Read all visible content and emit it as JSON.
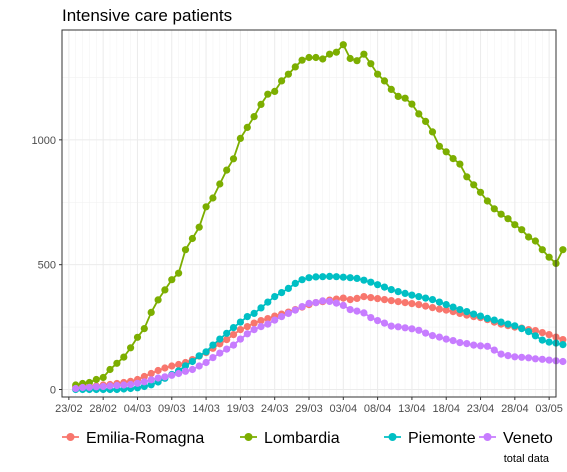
{
  "chart_data": {
    "type": "line",
    "title": "Intensive care patients",
    "caption": "total data",
    "xlabel": "",
    "ylabel": "",
    "x_start": "2020-02-24",
    "x_tick_labels": [
      "23/02",
      "28/02",
      "04/03",
      "09/03",
      "14/03",
      "19/03",
      "24/03",
      "29/03",
      "03/04",
      "08/04",
      "13/04",
      "18/04",
      "23/04",
      "28/04",
      "03/05"
    ],
    "y_ticks": [
      0,
      500,
      1000
    ],
    "xlim": [
      "2020-02-22",
      "2020-05-04"
    ],
    "ylim": [
      -30,
      1440
    ],
    "grid": true,
    "legend_position": "bottom",
    "series": [
      {
        "name": "Emilia-Romagna",
        "color": "#F8766D",
        "values": [
          10,
          12,
          13,
          14,
          18,
          20,
          24,
          28,
          33,
          40,
          52,
          64,
          76,
          86,
          94,
          100,
          108,
          120,
          134,
          148,
          165,
          183,
          200,
          220,
          240,
          252,
          266,
          276,
          284,
          294,
          302,
          310,
          320,
          330,
          340,
          348,
          352,
          358,
          362,
          366,
          360,
          365,
          372,
          368,
          364,
          360,
          356,
          352,
          348,
          344,
          340,
          334,
          328,
          322,
          318,
          312,
          305,
          298,
          292,
          288,
          280,
          270,
          262,
          256,
          250,
          246,
          240,
          236,
          228,
          220,
          210,
          200
        ]
      },
      {
        "name": "Lombardia",
        "color": "#7CAE00",
        "values": [
          18,
          24,
          28,
          40,
          48,
          80,
          105,
          130,
          167,
          209,
          244,
          309,
          359,
          399,
          440,
          466,
          560,
          605,
          650,
          732,
          767,
          823,
          879,
          924,
          1006,
          1050,
          1093,
          1142,
          1183,
          1194,
          1236,
          1263,
          1292,
          1319,
          1330,
          1330,
          1324,
          1343,
          1351,
          1381,
          1326,
          1317,
          1343,
          1305,
          1263,
          1236,
          1202,
          1174,
          1167,
          1143,
          1104,
          1074,
          1032,
          974,
          952,
          925,
          903,
          852,
          820,
          790,
          755,
          724,
          702,
          684,
          660,
          640,
          611,
          595,
          560,
          530,
          505,
          560
        ]
      },
      {
        "name": "Piemonte",
        "color": "#00BFC4",
        "values": [
          0,
          0,
          0,
          0,
          0,
          0,
          0,
          2,
          4,
          7,
          12,
          19,
          30,
          45,
          60,
          75,
          95,
          112,
          135,
          151,
          178,
          202,
          225,
          248,
          270,
          292,
          305,
          327,
          350,
          372,
          388,
          405,
          425,
          440,
          448,
          451,
          452,
          453,
          452,
          450,
          448,
          445,
          438,
          430,
          420,
          410,
          400,
          392,
          385,
          378,
          372,
          366,
          360,
          350,
          340,
          330,
          320,
          312,
          302,
          294,
          285,
          278,
          270,
          262,
          255,
          244,
          232,
          215,
          198,
          190,
          186,
          180
        ]
      },
      {
        "name": "Veneto",
        "color": "#C77CFF",
        "values": [
          4,
          8,
          9,
          11,
          12,
          14,
          16,
          18,
          20,
          25,
          31,
          39,
          46,
          51,
          57,
          64,
          73,
          80,
          94,
          108,
          128,
          146,
          162,
          178,
          202,
          223,
          240,
          252,
          262,
          278,
          292,
          305,
          318,
          332,
          345,
          348,
          355,
          353,
          346,
          337,
          320,
          314,
          307,
          288,
          276,
          266,
          254,
          251,
          247,
          243,
          237,
          226,
          216,
          210,
          202,
          196,
          188,
          184,
          178,
          175,
          173,
          158,
          142,
          136,
          131,
          129,
          127,
          123,
          121,
          118,
          115,
          112
        ]
      }
    ]
  }
}
